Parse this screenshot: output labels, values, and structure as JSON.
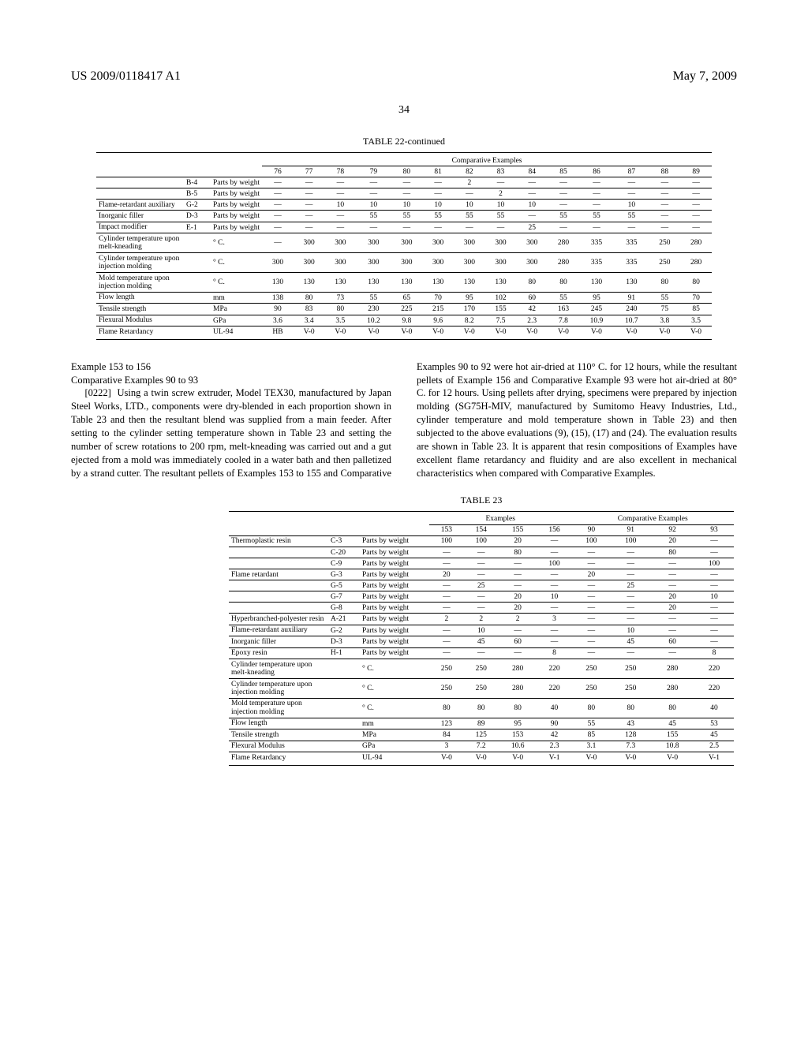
{
  "header": {
    "pubnum": "US 2009/0118417 A1",
    "date": "May 7, 2009",
    "page": "34"
  },
  "table22": {
    "title": "TABLE 22-continued",
    "groupHeader": "Comparative Examples",
    "cols": [
      "76",
      "77",
      "78",
      "79",
      "80",
      "81",
      "82",
      "83",
      "84",
      "85",
      "86",
      "87",
      "88",
      "89"
    ],
    "rows": [
      {
        "l": "",
        "c": "B-4",
        "u": "Parts by weight",
        "v": [
          "—",
          "—",
          "—",
          "—",
          "—",
          "—",
          "2",
          "—",
          "—",
          "—",
          "—",
          "—",
          "—",
          "—"
        ]
      },
      {
        "l": "",
        "c": "B-5",
        "u": "Parts by weight",
        "v": [
          "—",
          "—",
          "—",
          "—",
          "—",
          "—",
          "—",
          "2",
          "—",
          "—",
          "—",
          "—",
          "—",
          "—"
        ]
      },
      {
        "l": "Flame-retardant auxiliary",
        "c": "G-2",
        "u": "Parts by weight",
        "v": [
          "—",
          "—",
          "10",
          "10",
          "10",
          "10",
          "10",
          "10",
          "10",
          "—",
          "—",
          "10",
          "—",
          "—"
        ]
      },
      {
        "l": "Inorganic filler",
        "c": "D-3",
        "u": "Parts by weight",
        "v": [
          "—",
          "—",
          "—",
          "55",
          "55",
          "55",
          "55",
          "55",
          "—",
          "55",
          "55",
          "55",
          "—",
          "—"
        ]
      },
      {
        "l": "Impact modifier",
        "c": "E-1",
        "u": "Parts by weight",
        "v": [
          "—",
          "—",
          "—",
          "—",
          "—",
          "—",
          "—",
          "—",
          "25",
          "—",
          "—",
          "—",
          "—",
          "—"
        ]
      },
      {
        "l": "Cylinder temperature upon melt-kneading",
        "c": "",
        "u": "° C.",
        "v": [
          "—",
          "300",
          "300",
          "300",
          "300",
          "300",
          "300",
          "300",
          "300",
          "280",
          "335",
          "335",
          "250",
          "280"
        ]
      },
      {
        "l": "Cylinder temperature upon injection molding",
        "c": "",
        "u": "° C.",
        "v": [
          "300",
          "300",
          "300",
          "300",
          "300",
          "300",
          "300",
          "300",
          "300",
          "280",
          "335",
          "335",
          "250",
          "280"
        ]
      },
      {
        "l": "Mold temperature upon injection molding",
        "c": "",
        "u": "° C.",
        "v": [
          "130",
          "130",
          "130",
          "130",
          "130",
          "130",
          "130",
          "130",
          "80",
          "80",
          "130",
          "130",
          "80",
          "80"
        ]
      },
      {
        "l": "Flow length",
        "c": "",
        "u": "mm",
        "v": [
          "138",
          "80",
          "73",
          "55",
          "65",
          "70",
          "95",
          "102",
          "60",
          "55",
          "95",
          "91",
          "55",
          "70"
        ]
      },
      {
        "l": "Tensile strength",
        "c": "",
        "u": "MPa",
        "v": [
          "90",
          "83",
          "80",
          "230",
          "225",
          "215",
          "170",
          "155",
          "42",
          "163",
          "245",
          "240",
          "75",
          "85"
        ]
      },
      {
        "l": "Flexural Modulus",
        "c": "",
        "u": "GPa",
        "v": [
          "3.6",
          "3.4",
          "3.5",
          "10.2",
          "9.8",
          "9.6",
          "8.2",
          "7.5",
          "2.3",
          "7.8",
          "10.9",
          "10.7",
          "3.8",
          "3.5"
        ]
      },
      {
        "l": "Flame Retardancy",
        "c": "",
        "u": "UL-94",
        "v": [
          "HB",
          "V-0",
          "V-0",
          "V-0",
          "V-0",
          "V-0",
          "V-0",
          "V-0",
          "V-0",
          "V-0",
          "V-0",
          "V-0",
          "V-0",
          "V-0"
        ]
      }
    ]
  },
  "body": {
    "exTitle": "Example 153 to 156",
    "compTitle": "Comparative Examples 90 to 93",
    "paraNum": "[0222]",
    "col1": "Using a twin screw extruder, Model TEX30, manufactured by Japan Steel Works, LTD., components were dry-blended in each proportion shown in Table 23 and then the resultant blend was supplied from a main feeder. After setting to the cylinder setting temperature shown in Table 23 and setting the number of screw rotations to 200 rpm, melt-kneading was carried out and a gut ejected from a mold was immediately cooled in a water bath and then palletized by a strand cutter. The resultant pellets of Examples 153 to 155 and",
    "col2": "Comparative Examples 90 to 92 were hot air-dried at 110° C. for 12 hours, while the resultant pellets of Example 156 and Comparative Example 93 were hot air-dried at 80° C. for 12 hours. Using pellets after drying, specimens were prepared by injection molding (SG75H-MIV, manufactured by Sumitomo Heavy Industries, Ltd., cylinder temperature and mold temperature shown in Table 23) and then subjected to the above evaluations (9), (15), (17) and (24). The evaluation results are shown in Table 23. It is apparent that resin compositions of Examples have excellent flame retardancy and fluidity and are also excellent in mechanical characteristics when compared with Comparative Examples."
  },
  "table23": {
    "title": "TABLE 23",
    "h1": "Examples",
    "h2": "Comparative Examples",
    "cols1": [
      "153",
      "154",
      "155",
      "156"
    ],
    "cols2": [
      "90",
      "91",
      "92",
      "93"
    ],
    "rows": [
      {
        "l": "Thermoplastic resin",
        "c": "C-3",
        "u": "Parts by weight",
        "v": [
          "100",
          "100",
          "20",
          "—",
          "100",
          "100",
          "20",
          "—"
        ]
      },
      {
        "l": "",
        "c": "C-20",
        "u": "Parts by weight",
        "v": [
          "—",
          "—",
          "80",
          "—",
          "—",
          "—",
          "80",
          "—"
        ]
      },
      {
        "l": "",
        "c": "C-9",
        "u": "Parts by weight",
        "v": [
          "—",
          "—",
          "—",
          "100",
          "—",
          "—",
          "—",
          "100"
        ]
      },
      {
        "l": "Flame retardant",
        "c": "G-3",
        "u": "Parts by weight",
        "v": [
          "20",
          "—",
          "—",
          "—",
          "20",
          "—",
          "—",
          "—"
        ]
      },
      {
        "l": "",
        "c": "G-5",
        "u": "Parts by weight",
        "v": [
          "—",
          "25",
          "—",
          "—",
          "—",
          "25",
          "—",
          "—"
        ]
      },
      {
        "l": "",
        "c": "G-7",
        "u": "Parts by weight",
        "v": [
          "—",
          "—",
          "20",
          "10",
          "—",
          "—",
          "20",
          "10"
        ]
      },
      {
        "l": "",
        "c": "G-8",
        "u": "Parts by weight",
        "v": [
          "—",
          "—",
          "20",
          "—",
          "—",
          "—",
          "20",
          "—"
        ]
      },
      {
        "l": "Hyperbranched-polyester resin",
        "c": "A-21",
        "u": "Parts by weight",
        "v": [
          "2",
          "2",
          "2",
          "3",
          "—",
          "—",
          "—",
          "—"
        ]
      },
      {
        "l": "Flame-retardant auxiliary",
        "c": "G-2",
        "u": "Parts by weight",
        "v": [
          "—",
          "10",
          "—",
          "—",
          "—",
          "10",
          "—",
          "—"
        ]
      },
      {
        "l": "Inorganic filler",
        "c": "D-3",
        "u": "Parts by weight",
        "v": [
          "—",
          "45",
          "60",
          "—",
          "—",
          "45",
          "60",
          "—"
        ]
      },
      {
        "l": "Epoxy resin",
        "c": "H-1",
        "u": "Parts by weight",
        "v": [
          "—",
          "—",
          "—",
          "8",
          "—",
          "—",
          "—",
          "8"
        ]
      },
      {
        "l": "Cylinder temperature upon melt-kneading",
        "c": "",
        "u": "° C.",
        "v": [
          "250",
          "250",
          "280",
          "220",
          "250",
          "250",
          "280",
          "220"
        ]
      },
      {
        "l": "Cylinder temperature upon injection molding",
        "c": "",
        "u": "° C.",
        "v": [
          "250",
          "250",
          "280",
          "220",
          "250",
          "250",
          "280",
          "220"
        ]
      },
      {
        "l": "Mold temperature upon injection molding",
        "c": "",
        "u": "° C.",
        "v": [
          "80",
          "80",
          "80",
          "40",
          "80",
          "80",
          "80",
          "40"
        ]
      },
      {
        "l": "Flow length",
        "c": "",
        "u": "mm",
        "v": [
          "123",
          "89",
          "95",
          "90",
          "55",
          "43",
          "45",
          "53"
        ]
      },
      {
        "l": "Tensile strength",
        "c": "",
        "u": "MPa",
        "v": [
          "84",
          "125",
          "153",
          "42",
          "85",
          "128",
          "155",
          "45"
        ]
      },
      {
        "l": "Flexural Modulus",
        "c": "",
        "u": "GPa",
        "v": [
          "3",
          "7.2",
          "10.6",
          "2.3",
          "3.1",
          "7.3",
          "10.8",
          "2.5"
        ]
      },
      {
        "l": "Flame Retardancy",
        "c": "",
        "u": "UL-94",
        "v": [
          "V-0",
          "V-0",
          "V-0",
          "V-1",
          "V-0",
          "V-0",
          "V-0",
          "V-1"
        ]
      }
    ]
  }
}
